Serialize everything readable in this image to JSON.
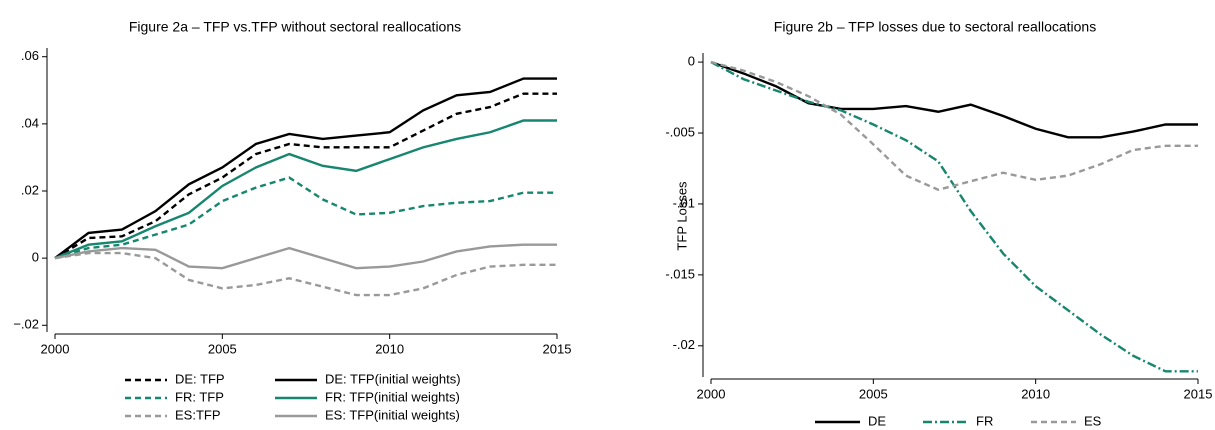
{
  "chart_data": [
    {
      "type": "line",
      "title": "Figure 2a – TFP vs.TFP without sectoral reallocations",
      "x": [
        2000,
        2001,
        2002,
        2003,
        2004,
        2005,
        2006,
        2007,
        2008,
        2009,
        2010,
        2011,
        2012,
        2013,
        2014,
        2015
      ],
      "xlim": [
        2000,
        2015
      ],
      "xticks": [
        2000,
        2005,
        2010,
        2015
      ],
      "ylim": [
        -0.022,
        0.062
      ],
      "yticks": [
        {
          "value": -0.02,
          "label": "−.02"
        },
        0,
        {
          "value": 0.02,
          "label": ".02"
        },
        {
          "value": 0.04,
          "label": ".04"
        },
        {
          "value": 0.06,
          "label": ".06"
        }
      ],
      "series": [
        {
          "name": "DE: TFP",
          "color": "#000000",
          "dash": "dashed",
          "values": [
            0,
            0.006,
            0.0065,
            0.011,
            0.019,
            0.024,
            0.031,
            0.034,
            0.033,
            0.033,
            0.033,
            0.038,
            0.043,
            0.045,
            0.049,
            0.049
          ]
        },
        {
          "name": "DE: TFP(initial weights)",
          "color": "#000000",
          "dash": "solid",
          "values": [
            0,
            0.0075,
            0.0085,
            0.014,
            0.022,
            0.027,
            0.034,
            0.037,
            0.0355,
            0.0365,
            0.0375,
            0.044,
            0.0485,
            0.0495,
            0.0535,
            0.0535
          ]
        },
        {
          "name": "FR: TFP",
          "color": "#17866f",
          "dash": "dashed",
          "values": [
            0,
            0.003,
            0.004,
            0.007,
            0.01,
            0.017,
            0.021,
            0.024,
            0.0175,
            0.013,
            0.0135,
            0.0155,
            0.0165,
            0.017,
            0.0195,
            0.0195
          ]
        },
        {
          "name": "FR: TFP(initial weights)",
          "color": "#17866f",
          "dash": "solid",
          "values": [
            0,
            0.004,
            0.005,
            0.0095,
            0.0135,
            0.0215,
            0.027,
            0.031,
            0.0275,
            0.026,
            0.0295,
            0.033,
            0.0355,
            0.0375,
            0.041,
            0.041
          ]
        },
        {
          "name": "ES:TFP",
          "color": "#999999",
          "dash": "dashed",
          "values": [
            0,
            0.0015,
            0.0015,
            0,
            -0.0065,
            -0.009,
            -0.008,
            -0.006,
            -0.0085,
            -0.011,
            -0.011,
            -0.009,
            -0.005,
            -0.0025,
            -0.002,
            -0.002
          ]
        },
        {
          "name": "ES: TFP(initial weights)",
          "color": "#999999",
          "dash": "solid",
          "values": [
            0,
            0.002,
            0.003,
            0.0025,
            -0.0025,
            -0.003,
            0,
            0.003,
            0,
            -0.003,
            -0.0025,
            -0.001,
            0.002,
            0.0035,
            0.004,
            0.004
          ]
        }
      ]
    },
    {
      "type": "line",
      "title": "Figure 2b  – TFP losses due to sectoral reallocations",
      "y_label": "TFP Losses",
      "x": [
        2000,
        2001,
        2002,
        2003,
        2004,
        2005,
        2006,
        2007,
        2008,
        2009,
        2010,
        2011,
        2012,
        2013,
        2014,
        2015
      ],
      "xlim": [
        2000,
        2015
      ],
      "xticks": [
        2000,
        2005,
        2010,
        2015
      ],
      "ylim": [
        -0.0222,
        0.0005
      ],
      "yticks": [
        {
          "value": -0.02,
          "label": "-.02"
        },
        {
          "value": -0.015,
          "label": "-.015"
        },
        {
          "value": -0.01,
          "label": "-.01"
        },
        {
          "value": -0.005,
          "label": "-.005"
        },
        0
      ],
      "series": [
        {
          "name": "DE",
          "color": "#000000",
          "dash": "solid",
          "values": [
            0,
            -0.0008,
            -0.0017,
            -0.0029,
            -0.0033,
            -0.0033,
            -0.0031,
            -0.0035,
            -0.003,
            -0.0038,
            -0.0047,
            -0.0053,
            -0.0053,
            -0.0049,
            -0.0044,
            -0.0044
          ]
        },
        {
          "name": "FR",
          "color": "#17866f",
          "dash": "dashdot",
          "values": [
            0,
            -0.0012,
            -0.002,
            -0.0028,
            -0.0034,
            -0.0044,
            -0.0055,
            -0.007,
            -0.0105,
            -0.0135,
            -0.0158,
            -0.0175,
            -0.0192,
            -0.0207,
            -0.0218,
            -0.0218
          ]
        },
        {
          "name": "ES",
          "color": "#999999",
          "dash": "dashed",
          "values": [
            0,
            -0.0006,
            -0.0014,
            -0.0024,
            -0.0037,
            -0.0058,
            -0.008,
            -0.009,
            -0.0084,
            -0.0078,
            -0.0083,
            -0.008,
            -0.0072,
            -0.0062,
            -0.0059,
            -0.0059
          ]
        }
      ]
    }
  ]
}
